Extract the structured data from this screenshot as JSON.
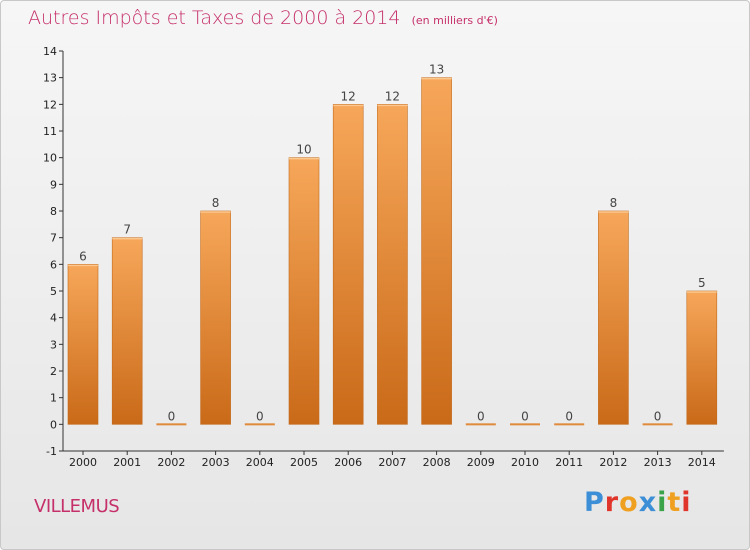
{
  "title": "Autres Impôts et Taxes de 2000 à 2014",
  "unit_note": "(en milliers d'€)",
  "commune": "VILLEMUS",
  "brand": {
    "text": "Proxiti",
    "colors": [
      "#3c8fd6",
      "#e0352b",
      "#f0a020",
      "#3c8fd6",
      "#3aa34a",
      "#f0a020",
      "#e0352b"
    ]
  },
  "chart_data": {
    "type": "bar",
    "title": "Autres Impôts et Taxes de 2000 à 2014",
    "xlabel": "",
    "ylabel": "",
    "categories": [
      "2000",
      "2001",
      "2002",
      "2003",
      "2004",
      "2005",
      "2006",
      "2007",
      "2008",
      "2009",
      "2010",
      "2011",
      "2012",
      "2013",
      "2014"
    ],
    "values": [
      6,
      7,
      0,
      8,
      0,
      10,
      12,
      12,
      13,
      0,
      0,
      0,
      8,
      0,
      5
    ],
    "ylim": [
      -1,
      14
    ],
    "yticks": [
      "-1",
      "0",
      "1",
      "2",
      "3",
      "4",
      "5",
      "6",
      "7",
      "8",
      "9",
      "10",
      "11",
      "12",
      "13",
      "14"
    ],
    "grid": false,
    "bar_color": "#f0a050",
    "bar_color_dark": "#c96a18"
  }
}
